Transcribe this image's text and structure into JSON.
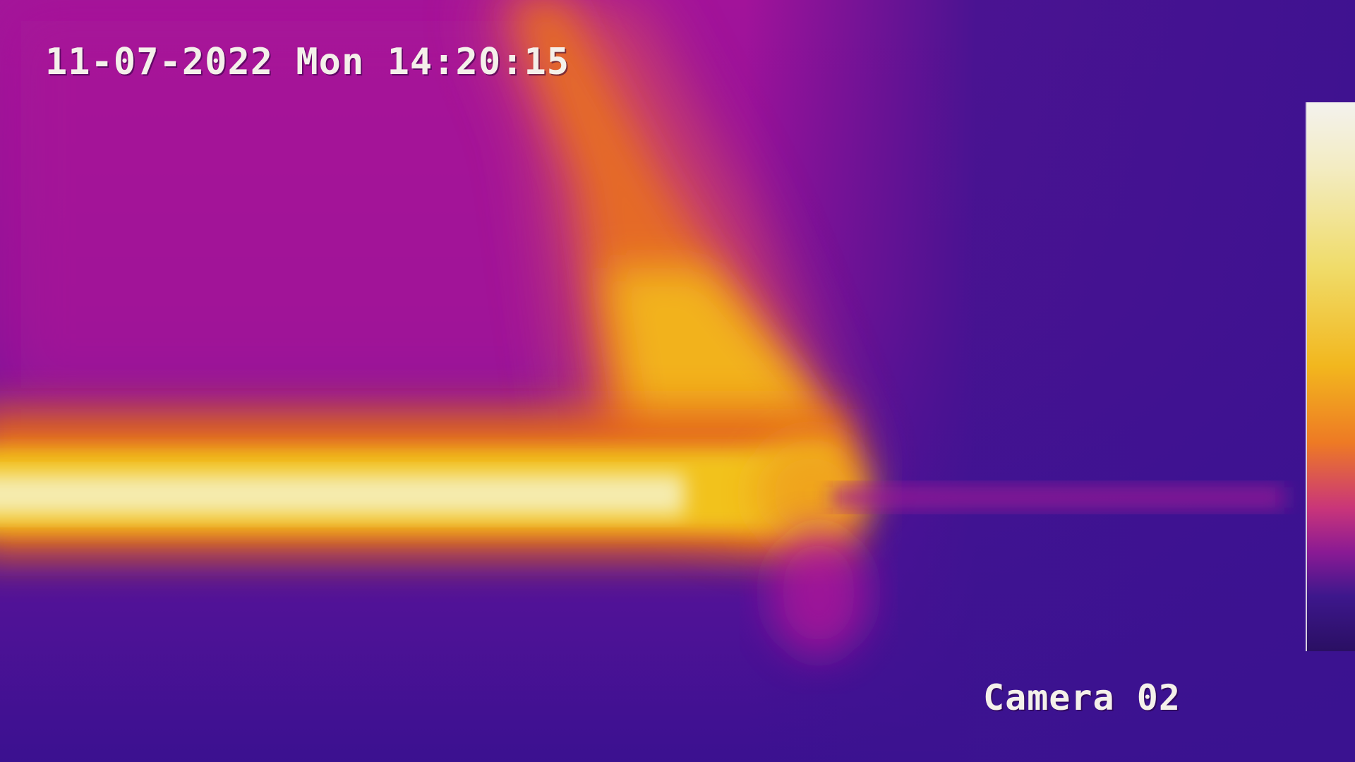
{
  "osd": {
    "timestamp": "11-07-2022 Mon 14:20:15",
    "camera_label": "Camera 02"
  },
  "palette": {
    "background_magenta": "#a2139a",
    "background_purple": "#3b1190",
    "hot_white": "#f5f1d0",
    "hot_yellow": "#f2c21e",
    "warm_orange": "#e8701f",
    "osd_text": "#f4f0ea"
  },
  "colorbar": {
    "palette_name": "iron",
    "direction": "hot-top"
  }
}
